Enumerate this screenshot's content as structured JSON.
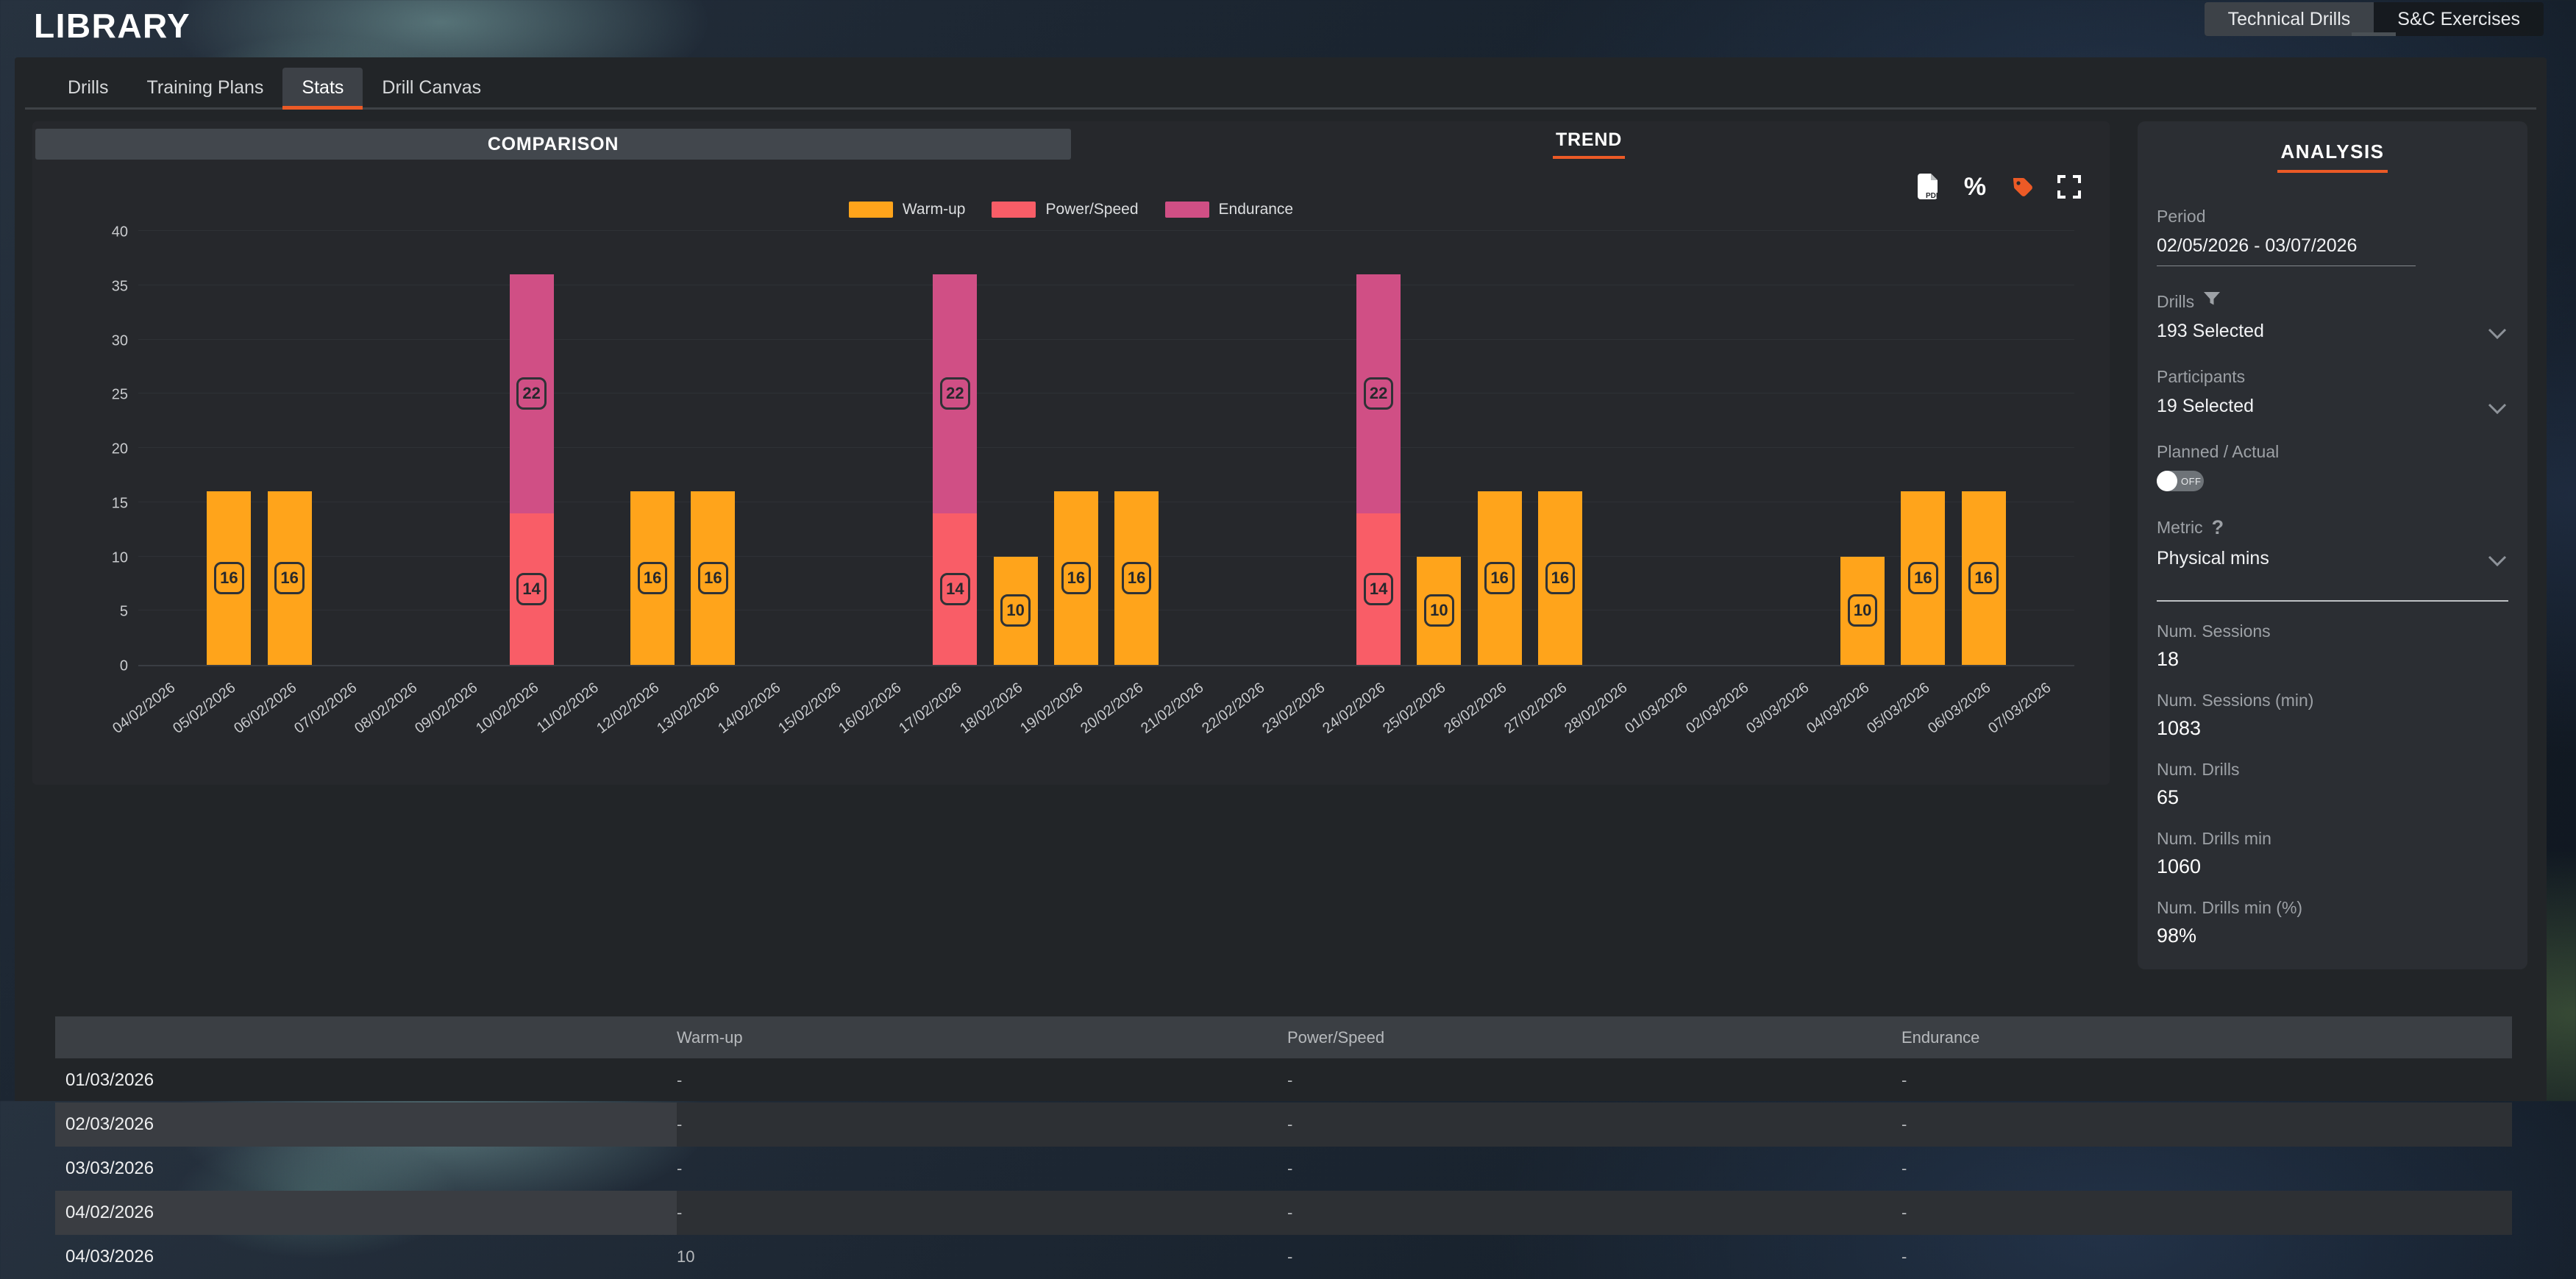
{
  "header": {
    "title": "LIBRARY",
    "mode_tabs": [
      {
        "label": "Technical Drills",
        "active": true
      },
      {
        "label": "S&C Exercises",
        "active": false
      }
    ]
  },
  "nav_tabs": [
    {
      "label": "Drills",
      "active": false
    },
    {
      "label": "Training Plans",
      "active": false
    },
    {
      "label": "Stats",
      "active": true
    },
    {
      "label": "Drill Canvas",
      "active": false
    }
  ],
  "chart_tabs": {
    "comparison": "COMPARISON",
    "trend": "TREND"
  },
  "toolbar": {
    "icons": [
      "pdf-export",
      "percent",
      "tag",
      "fullscreen"
    ],
    "percent_glyph": "%"
  },
  "colors": {
    "accent": "#EC5A26",
    "warmup": "#FFA41B",
    "power_speed": "#F95D67",
    "endurance": "#D04F85"
  },
  "chart_data": {
    "type": "bar",
    "stacked": true,
    "title": "",
    "xlabel": "",
    "ylabel": "",
    "ylim": [
      0,
      40
    ],
    "yticks": [
      0,
      5,
      10,
      15,
      20,
      25,
      30,
      35,
      40
    ],
    "grid": true,
    "legend_position": "top",
    "categories": [
      "04/02/2026",
      "05/02/2026",
      "06/02/2026",
      "07/02/2026",
      "08/02/2026",
      "09/02/2026",
      "10/02/2026",
      "11/02/2026",
      "12/02/2026",
      "13/02/2026",
      "14/02/2026",
      "15/02/2026",
      "16/02/2026",
      "17/02/2026",
      "18/02/2026",
      "19/02/2026",
      "20/02/2026",
      "21/02/2026",
      "22/02/2026",
      "23/02/2026",
      "24/02/2026",
      "25/02/2026",
      "26/02/2026",
      "27/02/2026",
      "28/02/2026",
      "01/03/2026",
      "02/03/2026",
      "03/03/2026",
      "04/03/2026",
      "05/03/2026",
      "06/03/2026",
      "07/03/2026"
    ],
    "series": [
      {
        "name": "Warm-up",
        "color": "#FFA41B",
        "values": [
          0,
          16,
          16,
          0,
          0,
          0,
          0,
          0,
          16,
          16,
          0,
          0,
          0,
          0,
          10,
          16,
          16,
          0,
          0,
          0,
          0,
          10,
          16,
          16,
          0,
          0,
          0,
          0,
          10,
          16,
          16,
          0
        ]
      },
      {
        "name": "Power/Speed",
        "color": "#F95D67",
        "values": [
          0,
          0,
          0,
          0,
          0,
          0,
          14,
          0,
          0,
          0,
          0,
          0,
          0,
          14,
          0,
          0,
          0,
          0,
          0,
          0,
          14,
          0,
          0,
          0,
          0,
          0,
          0,
          0,
          0,
          0,
          0,
          0
        ]
      },
      {
        "name": "Endurance",
        "color": "#D04F85",
        "values": [
          0,
          0,
          0,
          0,
          0,
          0,
          22,
          0,
          0,
          0,
          0,
          0,
          0,
          22,
          0,
          0,
          0,
          0,
          0,
          0,
          22,
          0,
          0,
          0,
          0,
          0,
          0,
          0,
          0,
          0,
          0,
          0
        ]
      }
    ]
  },
  "analysis": {
    "title": "ANALYSIS",
    "period_label": "Period",
    "period_value": "02/05/2026 - 03/07/2026",
    "drills_label": "Drills",
    "drills_value": "193 Selected",
    "participants_label": "Participants",
    "participants_value": "19 Selected",
    "planned_actual_label": "Planned / Actual",
    "planned_actual_state": "OFF",
    "metric_label": "Metric",
    "metric_help": "?",
    "metric_value": "Physical mins",
    "stats": [
      {
        "label": "Num. Sessions",
        "value": "18"
      },
      {
        "label": "Num. Sessions (min)",
        "value": "1083"
      },
      {
        "label": "Num. Drills",
        "value": "65"
      },
      {
        "label": "Num. Drills min",
        "value": "1060"
      },
      {
        "label": "Num. Drills min (%)",
        "value": "98%"
      }
    ]
  },
  "table": {
    "columns": [
      "",
      "Warm-up",
      "Power/Speed",
      "Endurance"
    ],
    "rows": [
      {
        "date": "01/03/2026",
        "values": [
          "-",
          "-",
          "-"
        ]
      },
      {
        "date": "02/03/2026",
        "values": [
          "-",
          "-",
          "-"
        ]
      },
      {
        "date": "03/03/2026",
        "values": [
          "-",
          "-",
          "-"
        ]
      },
      {
        "date": "04/02/2026",
        "values": [
          "-",
          "-",
          "-"
        ]
      },
      {
        "date": "04/03/2026",
        "values": [
          "10",
          "-",
          "-"
        ]
      }
    ]
  }
}
